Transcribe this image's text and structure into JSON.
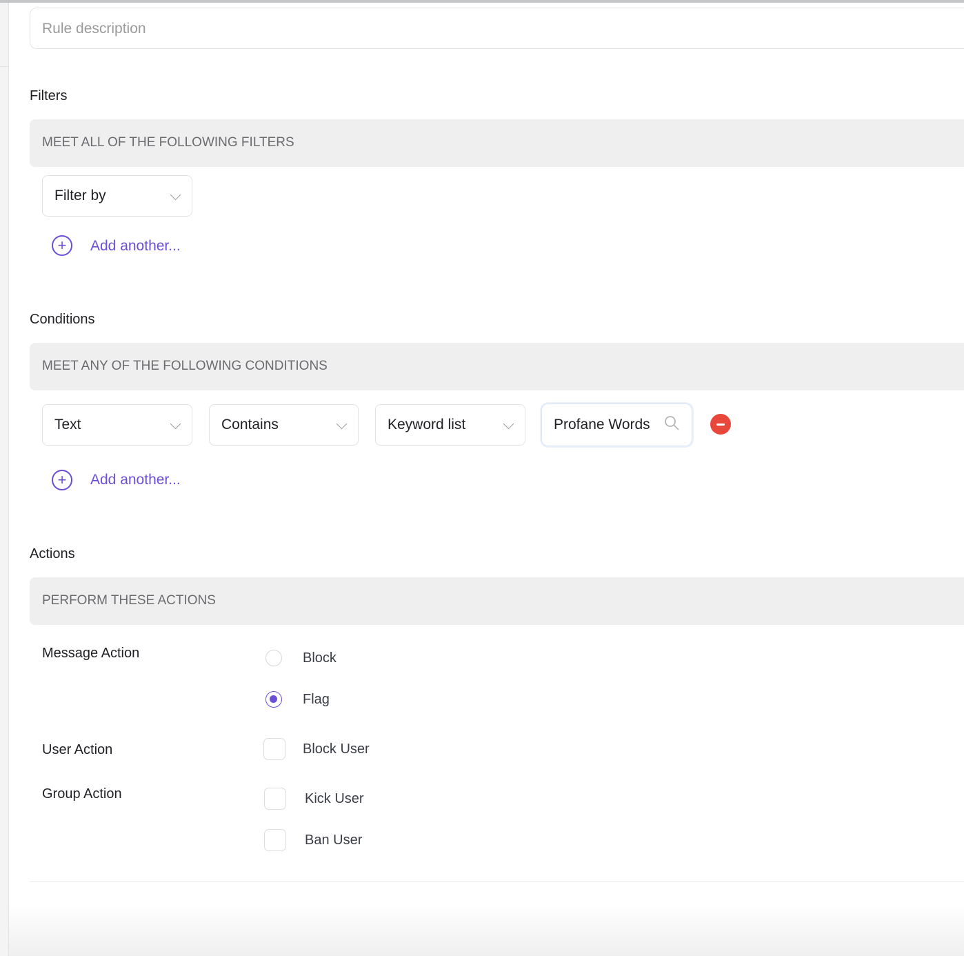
{
  "description": {
    "placeholder": "Rule description"
  },
  "filters": {
    "title": "Filters",
    "band": "MEET ALL OF THE FOLLOWING FILTERS",
    "select": "Filter by",
    "add_label": "Add another..."
  },
  "conditions": {
    "title": "Conditions",
    "band": "MEET ANY OF THE FOLLOWING CONDITIONS",
    "field": "Text",
    "operator": "Contains",
    "value_type": "Keyword list",
    "value": "Profane Words",
    "add_label": "Add another..."
  },
  "actions": {
    "title": "Actions",
    "band": "PERFORM THESE ACTIONS",
    "message_action": {
      "label": "Message Action",
      "options": [
        {
          "label": "Block",
          "selected": false
        },
        {
          "label": "Flag",
          "selected": true
        }
      ]
    },
    "user_action": {
      "label": "User Action",
      "options": [
        {
          "label": "Block User",
          "checked": false
        }
      ]
    },
    "group_action": {
      "label": "Group Action",
      "options": [
        {
          "label": "Kick User",
          "checked": false
        },
        {
          "label": "Ban User",
          "checked": false
        }
      ]
    }
  },
  "colors": {
    "accent": "#6a4fd6",
    "danger": "#e8473b",
    "band": "#efefef"
  }
}
